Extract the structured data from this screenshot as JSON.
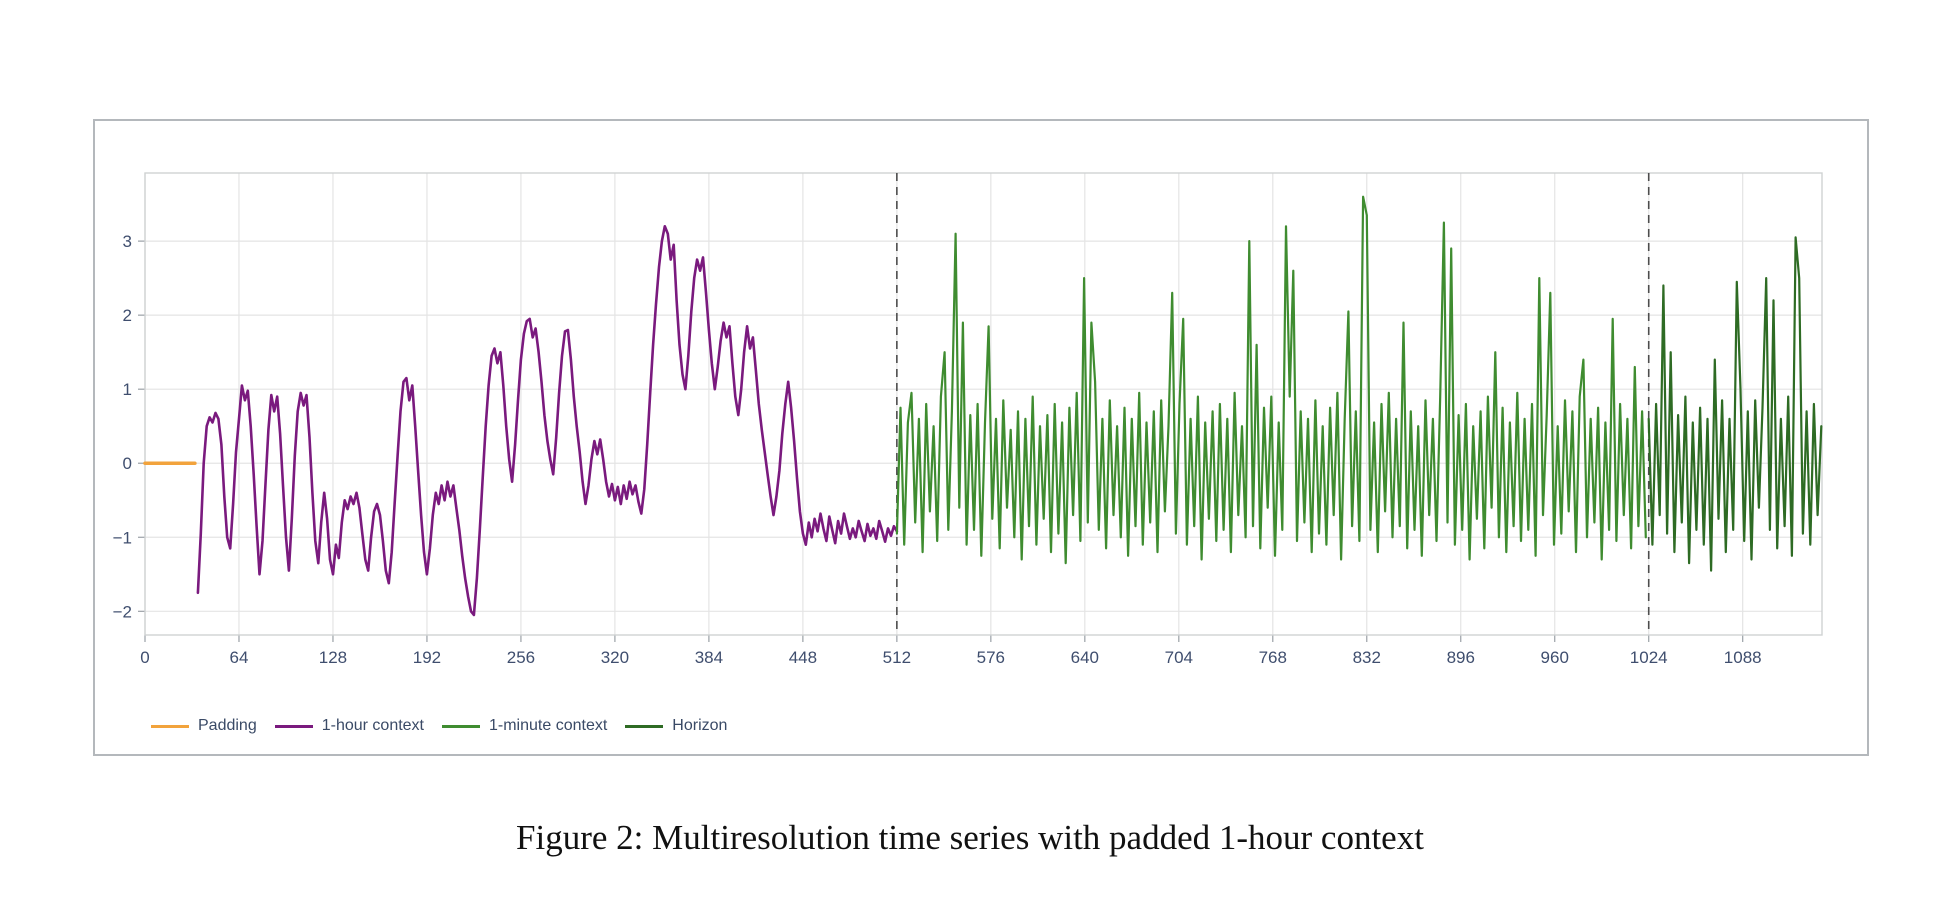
{
  "figure": {
    "caption": "Figure 2: Multiresolution time series with padded 1-hour context"
  },
  "chart_data": {
    "type": "line",
    "title": "",
    "xlabel": "",
    "ylabel": "",
    "xlim": [
      0,
      1142
    ],
    "ylim": [
      -2.32,
      3.92
    ],
    "xticks": [
      0,
      64,
      128,
      192,
      256,
      320,
      384,
      448,
      512,
      576,
      640,
      704,
      768,
      832,
      896,
      960,
      1024,
      1088
    ],
    "yticks": [
      -2,
      -1,
      0,
      1,
      2,
      3
    ],
    "grid": true,
    "legend_position": "below",
    "colors": {
      "grid": "#e4e4e4",
      "plot_border": "#cfd2d3",
      "tick_label": "#3f4e6e",
      "dashed_line": "#4d4d4d"
    },
    "vlines": [
      {
        "x": 512,
        "style": "dashed"
      },
      {
        "x": 1024,
        "style": "dashed"
      }
    ],
    "series": [
      {
        "name": "Padding",
        "color": "#f2a33c",
        "x0": 0,
        "dx": 34,
        "y": [
          0,
          0
        ]
      },
      {
        "name": "1-hour context",
        "color": "#7a1a7e",
        "x0": 36,
        "dx": 2,
        "y": [
          -1.75,
          -0.95,
          0,
          0.5,
          0.62,
          0.55,
          0.68,
          0.6,
          0.25,
          -0.45,
          -1,
          -1.15,
          -0.55,
          0.15,
          0.6,
          1.05,
          0.85,
          0.98,
          0.5,
          -0.15,
          -0.85,
          -1.5,
          -1.05,
          -0.3,
          0.45,
          0.92,
          0.7,
          0.9,
          0.4,
          -0.3,
          -1,
          -1.45,
          -0.75,
          0.1,
          0.7,
          0.95,
          0.78,
          0.92,
          0.35,
          -0.4,
          -1.05,
          -1.35,
          -0.8,
          -0.4,
          -0.75,
          -1.3,
          -1.5,
          -1.1,
          -1.28,
          -0.8,
          -0.5,
          -0.62,
          -0.45,
          -0.55,
          -0.4,
          -0.6,
          -0.95,
          -1.3,
          -1.45,
          -1,
          -0.65,
          -0.55,
          -0.7,
          -1.05,
          -1.45,
          -1.62,
          -1.2,
          -0.55,
          0.1,
          0.7,
          1.1,
          1.15,
          0.85,
          1.05,
          0.5,
          -0.1,
          -0.7,
          -1.2,
          -1.5,
          -1.15,
          -0.7,
          -0.4,
          -0.55,
          -0.3,
          -0.5,
          -0.25,
          -0.45,
          -0.3,
          -0.6,
          -0.9,
          -1.25,
          -1.55,
          -1.8,
          -2,
          -2.05,
          -1.55,
          -0.9,
          -0.2,
          0.5,
          1.05,
          1.45,
          1.55,
          1.35,
          1.5,
          1.05,
          0.5,
          0.05,
          -0.25,
          0.25,
          0.85,
          1.4,
          1.75,
          1.92,
          1.95,
          1.7,
          1.82,
          1.5,
          1.1,
          0.65,
          0.3,
          0.05,
          -0.15,
          0.35,
          0.95,
          1.45,
          1.78,
          1.8,
          1.4,
          0.9,
          0.5,
          0.15,
          -0.25,
          -0.55,
          -0.3,
          0.05,
          0.3,
          0.12,
          0.32,
          0.05,
          -0.25,
          -0.45,
          -0.28,
          -0.5,
          -0.32,
          -0.55,
          -0.3,
          -0.48,
          -0.25,
          -0.42,
          -0.3,
          -0.52,
          -0.68,
          -0.35,
          0.25,
          0.95,
          1.6,
          2.15,
          2.65,
          3,
          3.2,
          3.1,
          2.75,
          2.95,
          2.2,
          1.6,
          1.2,
          1,
          1.45,
          2.05,
          2.5,
          2.75,
          2.6,
          2.78,
          2.3,
          1.8,
          1.35,
          1,
          1.3,
          1.65,
          1.9,
          1.7,
          1.85,
          1.35,
          0.9,
          0.65,
          1,
          1.5,
          1.85,
          1.55,
          1.7,
          1.25,
          0.8,
          0.45,
          0.15,
          -0.15,
          -0.45,
          -0.7,
          -0.45,
          -0.1,
          0.4,
          0.8,
          1.1,
          0.75,
          0.3,
          -0.2,
          -0.65,
          -0.95,
          -1.1,
          -0.8,
          -1,
          -0.75,
          -0.92,
          -0.68,
          -0.88,
          -1.05,
          -0.72,
          -0.9,
          -1.08,
          -0.78,
          -0.95,
          -0.68,
          -0.85,
          -1.02,
          -0.88,
          -1,
          -0.78,
          -0.92,
          -1.05,
          -0.82,
          -0.98,
          -0.88,
          -1.02,
          -0.78,
          -0.92,
          -1.06,
          -0.88,
          -0.98,
          -0.85,
          -0.92
        ]
      },
      {
        "name": "1-minute context",
        "color": "#3f8c30",
        "x0": 512,
        "dx": 2.5,
        "y": [
          -0.95,
          0.75,
          -1.1,
          0.55,
          0.95,
          -0.8,
          0.6,
          -1.2,
          0.8,
          -0.65,
          0.5,
          -1.05,
          0.9,
          1.5,
          -0.9,
          0.7,
          3.1,
          -0.6,
          1.9,
          -1.1,
          0.65,
          -0.9,
          0.8,
          -1.25,
          0.55,
          1.85,
          -0.75,
          0.6,
          -1.15,
          0.85,
          -0.6,
          0.45,
          -1,
          0.7,
          -1.3,
          0.6,
          -0.85,
          0.9,
          -1.1,
          0.5,
          -0.75,
          0.65,
          -1.2,
          0.8,
          -0.95,
          0.55,
          -1.35,
          0.75,
          -0.7,
          0.95,
          -1.05,
          2.5,
          -0.8,
          1.9,
          1.1,
          -0.9,
          0.6,
          -1.15,
          0.85,
          -0.7,
          0.5,
          -1,
          0.75,
          -1.25,
          0.6,
          -0.85,
          0.95,
          -1.1,
          0.55,
          -0.8,
          0.7,
          -1.2,
          0.85,
          -0.65,
          0.5,
          2.3,
          -0.95,
          0.8,
          1.95,
          -1.1,
          0.6,
          -0.85,
          0.9,
          -1.3,
          0.55,
          -0.75,
          0.7,
          -1.05,
          0.8,
          -0.9,
          0.6,
          -1.2,
          0.95,
          -0.7,
          0.5,
          -1,
          3,
          -0.85,
          1.6,
          -1.15,
          0.75,
          -0.6,
          0.9,
          -1.25,
          0.55,
          -0.9,
          3.2,
          0.9,
          2.6,
          -1.05,
          0.7,
          -0.8,
          0.6,
          -1.2,
          0.85,
          -0.95,
          0.5,
          -1.1,
          0.75,
          -0.7,
          0.95,
          -1.3,
          0.6,
          2.05,
          -0.85,
          0.7,
          -1.05,
          3.6,
          3.35,
          -0.9,
          0.55,
          -1.2,
          0.8,
          -0.65,
          0.95,
          -1,
          0.6,
          -0.85,
          1.9,
          -1.15,
          0.7,
          -0.9,
          0.5,
          -1.25,
          0.85,
          -0.7,
          0.6,
          -1.05,
          0.9,
          3.25,
          -0.8,
          2.9,
          -1.1,
          0.65,
          -0.9,
          0.8,
          -1.3,
          0.5,
          -0.75,
          0.7,
          -1.15,
          0.9,
          -0.6,
          1.5,
          -1,
          0.75,
          -1.2,
          0.55,
          -0.85,
          0.95,
          -1.05,
          0.6,
          -0.9,
          0.8,
          -1.25,
          2.5,
          -0.7,
          0.65,
          2.3,
          -1.1,
          0.5,
          -0.95,
          0.85,
          -0.65,
          0.7,
          -1.2,
          0.9,
          1.4,
          -1,
          0.6,
          -0.8,
          0.75,
          -1.3,
          0.55,
          -0.9,
          1.95,
          -1.05,
          0.8,
          -0.7,
          0.6,
          -1.15,
          1.3,
          -0.85,
          0.7,
          -1
        ]
      },
      {
        "name": "Horizon",
        "color": "#2e6b24",
        "x0": 1024,
        "dx": 2.5,
        "y": [
          0.6,
          -1.1,
          0.8,
          -0.7,
          2.4,
          -0.95,
          1.5,
          -1.2,
          0.65,
          -0.8,
          0.9,
          -1.35,
          0.55,
          -0.9,
          0.75,
          -1.1,
          0.6,
          -1.45,
          1.4,
          -0.75,
          0.85,
          -1.2,
          0.6,
          -0.9,
          2.45,
          1,
          -1.05,
          0.7,
          -1.3,
          0.85,
          -0.6,
          0.75,
          2.5,
          -0.9,
          2.2,
          -1.15,
          0.6,
          -0.85,
          0.9,
          -1.25,
          3.05,
          2.5,
          -0.95,
          0.7,
          -1.1,
          0.8,
          -0.7,
          0.5
        ]
      }
    ]
  }
}
